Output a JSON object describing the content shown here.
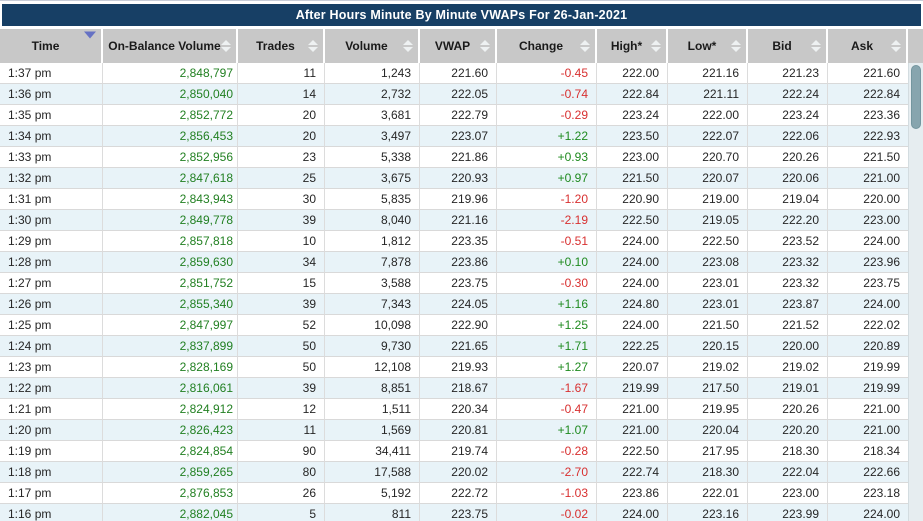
{
  "title": "After Hours Minute By Minute VWAPs For 26-Jan-2021",
  "colors": {
    "title_bar": "#173f65",
    "header_bg": "#c8c8c8",
    "row_alt": "#e8f3f8",
    "obv_green": "#228022",
    "change_pos": "#1f8a1f",
    "change_neg": "#d83030",
    "sort_active": "#6672c4",
    "scroll_thumb": "#87a5ae"
  },
  "columns": [
    {
      "id": "time",
      "label": "Time",
      "sorted": "desc"
    },
    {
      "id": "obv",
      "label": "On-Balance Volume",
      "sorted": "none"
    },
    {
      "id": "trades",
      "label": "Trades",
      "sorted": "none"
    },
    {
      "id": "volume",
      "label": "Volume",
      "sorted": "none"
    },
    {
      "id": "vwap",
      "label": "VWAP",
      "sorted": "none"
    },
    {
      "id": "change",
      "label": "Change",
      "sorted": "none"
    },
    {
      "id": "high",
      "label": "High*",
      "sorted": "none"
    },
    {
      "id": "low",
      "label": "Low*",
      "sorted": "none"
    },
    {
      "id": "bid",
      "label": "Bid",
      "sorted": "none"
    },
    {
      "id": "ask",
      "label": "Ask",
      "sorted": "none"
    }
  ],
  "rows": [
    {
      "time": "1:37 pm",
      "obv": "2,848,797",
      "trades": "11",
      "volume": "1,243",
      "vwap": "221.60",
      "change": "-0.45",
      "high": "222.00",
      "low": "221.16",
      "bid": "221.23",
      "ask": "221.60"
    },
    {
      "time": "1:36 pm",
      "obv": "2,850,040",
      "trades": "14",
      "volume": "2,732",
      "vwap": "222.05",
      "change": "-0.74",
      "high": "222.84",
      "low": "221.11",
      "bid": "222.24",
      "ask": "222.84"
    },
    {
      "time": "1:35 pm",
      "obv": "2,852,772",
      "trades": "20",
      "volume": "3,681",
      "vwap": "222.79",
      "change": "-0.29",
      "high": "223.24",
      "low": "222.00",
      "bid": "223.24",
      "ask": "223.36"
    },
    {
      "time": "1:34 pm",
      "obv": "2,856,453",
      "trades": "20",
      "volume": "3,497",
      "vwap": "223.07",
      "change": "+1.22",
      "high": "223.50",
      "low": "222.07",
      "bid": "222.06",
      "ask": "222.93"
    },
    {
      "time": "1:33 pm",
      "obv": "2,852,956",
      "trades": "23",
      "volume": "5,338",
      "vwap": "221.86",
      "change": "+0.93",
      "high": "223.00",
      "low": "220.70",
      "bid": "220.26",
      "ask": "221.50"
    },
    {
      "time": "1:32 pm",
      "obv": "2,847,618",
      "trades": "25",
      "volume": "3,675",
      "vwap": "220.93",
      "change": "+0.97",
      "high": "221.50",
      "low": "220.07",
      "bid": "220.06",
      "ask": "221.00"
    },
    {
      "time": "1:31 pm",
      "obv": "2,843,943",
      "trades": "30",
      "volume": "5,835",
      "vwap": "219.96",
      "change": "-1.20",
      "high": "220.90",
      "low": "219.00",
      "bid": "219.04",
      "ask": "220.00"
    },
    {
      "time": "1:30 pm",
      "obv": "2,849,778",
      "trades": "39",
      "volume": "8,040",
      "vwap": "221.16",
      "change": "-2.19",
      "high": "222.50",
      "low": "219.05",
      "bid": "222.20",
      "ask": "223.00"
    },
    {
      "time": "1:29 pm",
      "obv": "2,857,818",
      "trades": "10",
      "volume": "1,812",
      "vwap": "223.35",
      "change": "-0.51",
      "high": "224.00",
      "low": "222.50",
      "bid": "223.52",
      "ask": "224.00"
    },
    {
      "time": "1:28 pm",
      "obv": "2,859,630",
      "trades": "34",
      "volume": "7,878",
      "vwap": "223.86",
      "change": "+0.10",
      "high": "224.00",
      "low": "223.08",
      "bid": "223.32",
      "ask": "223.96"
    },
    {
      "time": "1:27 pm",
      "obv": "2,851,752",
      "trades": "15",
      "volume": "3,588",
      "vwap": "223.75",
      "change": "-0.30",
      "high": "224.00",
      "low": "223.01",
      "bid": "223.32",
      "ask": "223.75"
    },
    {
      "time": "1:26 pm",
      "obv": "2,855,340",
      "trades": "39",
      "volume": "7,343",
      "vwap": "224.05",
      "change": "+1.16",
      "high": "224.80",
      "low": "223.01",
      "bid": "223.87",
      "ask": "224.00"
    },
    {
      "time": "1:25 pm",
      "obv": "2,847,997",
      "trades": "52",
      "volume": "10,098",
      "vwap": "222.90",
      "change": "+1.25",
      "high": "224.00",
      "low": "221.50",
      "bid": "221.52",
      "ask": "222.02"
    },
    {
      "time": "1:24 pm",
      "obv": "2,837,899",
      "trades": "50",
      "volume": "9,730",
      "vwap": "221.65",
      "change": "+1.71",
      "high": "222.25",
      "low": "220.15",
      "bid": "220.00",
      "ask": "220.89"
    },
    {
      "time": "1:23 pm",
      "obv": "2,828,169",
      "trades": "50",
      "volume": "12,108",
      "vwap": "219.93",
      "change": "+1.27",
      "high": "220.07",
      "low": "219.02",
      "bid": "219.02",
      "ask": "219.99"
    },
    {
      "time": "1:22 pm",
      "obv": "2,816,061",
      "trades": "39",
      "volume": "8,851",
      "vwap": "218.67",
      "change": "-1.67",
      "high": "219.99",
      "low": "217.50",
      "bid": "219.01",
      "ask": "219.99"
    },
    {
      "time": "1:21 pm",
      "obv": "2,824,912",
      "trades": "12",
      "volume": "1,511",
      "vwap": "220.34",
      "change": "-0.47",
      "high": "221.00",
      "low": "219.95",
      "bid": "220.26",
      "ask": "221.00"
    },
    {
      "time": "1:20 pm",
      "obv": "2,826,423",
      "trades": "11",
      "volume": "1,569",
      "vwap": "220.81",
      "change": "+1.07",
      "high": "221.00",
      "low": "220.04",
      "bid": "220.20",
      "ask": "221.00"
    },
    {
      "time": "1:19 pm",
      "obv": "2,824,854",
      "trades": "90",
      "volume": "34,411",
      "vwap": "219.74",
      "change": "-0.28",
      "high": "222.50",
      "low": "217.95",
      "bid": "218.30",
      "ask": "218.34"
    },
    {
      "time": "1:18 pm",
      "obv": "2,859,265",
      "trades": "80",
      "volume": "17,588",
      "vwap": "220.02",
      "change": "-2.70",
      "high": "222.74",
      "low": "218.30",
      "bid": "222.04",
      "ask": "222.66"
    },
    {
      "time": "1:17 pm",
      "obv": "2,876,853",
      "trades": "26",
      "volume": "5,192",
      "vwap": "222.72",
      "change": "-1.03",
      "high": "223.86",
      "low": "222.01",
      "bid": "223.00",
      "ask": "223.18"
    },
    {
      "time": "1:16 pm",
      "obv": "2,882,045",
      "trades": "5",
      "volume": "811",
      "vwap": "223.75",
      "change": "-0.02",
      "high": "224.00",
      "low": "223.16",
      "bid": "223.99",
      "ask": "224.00"
    }
  ]
}
